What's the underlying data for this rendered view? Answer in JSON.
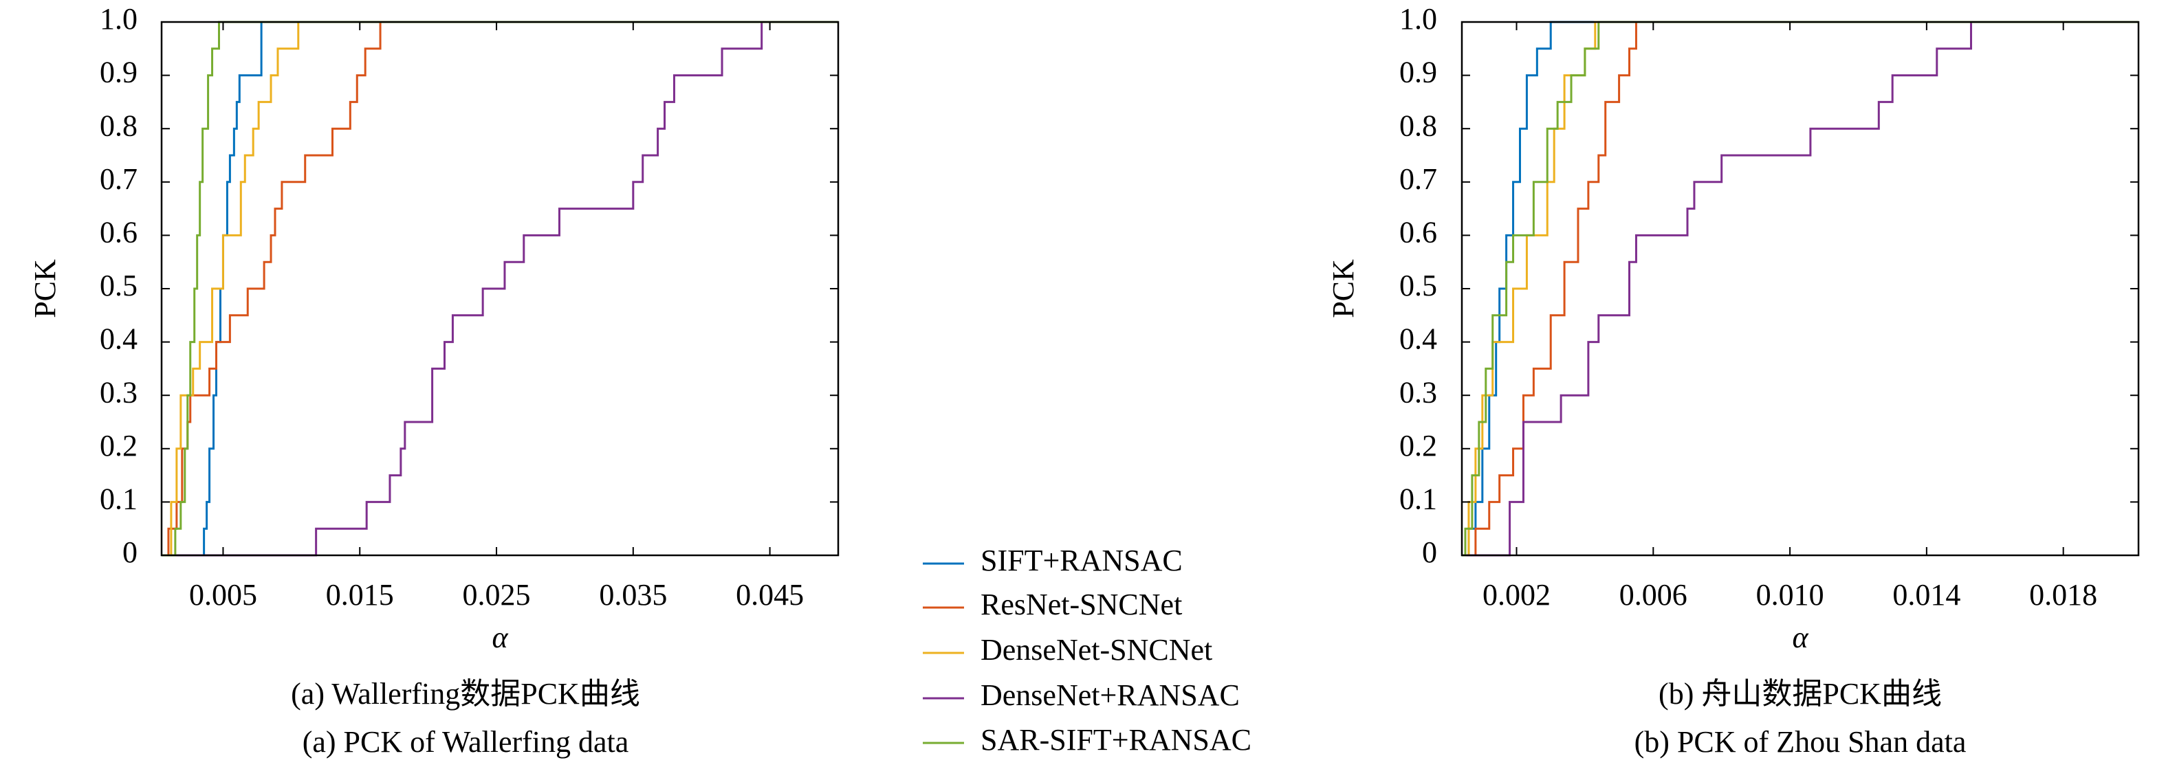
{
  "chart_data": [
    {
      "type": "step",
      "ylabel": "PCK",
      "xlabel": "α",
      "captions": [
        "(a) Wallerfing数据PCK曲线",
        "(a) PCK of Wallerfing data"
      ],
      "xlim": [
        0.0005,
        0.05
      ],
      "xticks": [
        0.005,
        0.015,
        0.025,
        0.035,
        0.045
      ],
      "ylim": [
        0,
        1
      ],
      "yticks": [
        0,
        0.1,
        0.2,
        0.3,
        0.4,
        0.5,
        0.6,
        0.7,
        0.8,
        0.9,
        {
          "value": 1,
          "label": "1.0"
        }
      ],
      "series": [
        {
          "name": "SIFT+RANSAC",
          "color": "#0072bd",
          "x": [
            0.0005,
            0.0036,
            0.0038,
            0.004,
            0.0043,
            0.0045,
            0.0048,
            0.005,
            0.0053,
            0.0055,
            0.0058,
            0.006,
            0.0062,
            0.0078
          ],
          "values": [
            0,
            0.05,
            0.1,
            0.2,
            0.3,
            0.4,
            0.5,
            0.6,
            0.7,
            0.75,
            0.8,
            0.85,
            0.9,
            1.0
          ]
        },
        {
          "name": "ResNet-SNCNet",
          "color": "#d95319",
          "x": [
            0.0005,
            0.001,
            0.0016,
            0.002,
            0.0024,
            0.0026,
            0.004,
            0.0045,
            0.0055,
            0.0068,
            0.008,
            0.0085,
            0.0088,
            0.0093,
            0.011,
            0.013,
            0.0143,
            0.0148,
            0.0154,
            0.0165
          ],
          "values": [
            0,
            0.05,
            0.1,
            0.2,
            0.25,
            0.3,
            0.35,
            0.4,
            0.45,
            0.5,
            0.55,
            0.6,
            0.65,
            0.7,
            0.75,
            0.8,
            0.85,
            0.9,
            0.95,
            1.0
          ]
        },
        {
          "name": "DenseNet-SNCNet",
          "color": "#edb120",
          "x": [
            0.0005,
            0.0012,
            0.0016,
            0.0019,
            0.0028,
            0.0033,
            0.0042,
            0.005,
            0.0063,
            0.0066,
            0.0072,
            0.0076,
            0.0085,
            0.009,
            0.0105
          ],
          "values": [
            0,
            0.1,
            0.2,
            0.3,
            0.35,
            0.4,
            0.5,
            0.6,
            0.7,
            0.75,
            0.8,
            0.85,
            0.9,
            0.95,
            1.0
          ]
        },
        {
          "name": "DenseNet+RANSAC",
          "color": "#7e2f8e",
          "x": [
            0.0005,
            0.0118,
            0.0155,
            0.0172,
            0.018,
            0.0183,
            0.0203,
            0.0212,
            0.0218,
            0.024,
            0.0256,
            0.027,
            0.0296,
            0.035,
            0.0357,
            0.0368,
            0.0373,
            0.038,
            0.0415,
            0.0444
          ],
          "values": [
            0,
            0.05,
            0.1,
            0.15,
            0.2,
            0.25,
            0.35,
            0.4,
            0.45,
            0.5,
            0.55,
            0.6,
            0.65,
            0.7,
            0.75,
            0.8,
            0.85,
            0.9,
            0.95,
            1.0
          ]
        },
        {
          "name": "SAR-SIFT+RANSAC",
          "color": "#77ac30",
          "x": [
            0.0005,
            0.0015,
            0.0019,
            0.0022,
            0.0024,
            0.0026,
            0.0029,
            0.0031,
            0.0033,
            0.0035,
            0.0039,
            0.0042,
            0.0047
          ],
          "values": [
            0,
            0.05,
            0.1,
            0.2,
            0.3,
            0.4,
            0.5,
            0.6,
            0.7,
            0.8,
            0.9,
            0.95,
            1.0
          ]
        }
      ]
    },
    {
      "type": "step",
      "ylabel": "PCK",
      "xlabel": "α",
      "captions": [
        "(b) 舟山数据PCK曲线",
        "(b) PCK of Zhou Shan data"
      ],
      "xlim": [
        0.0004,
        0.0202
      ],
      "xticks": [
        0.002,
        0.006,
        {
          "value": 0.01,
          "label": "0.010"
        },
        0.014,
        0.018
      ],
      "ylim": [
        0,
        1
      ],
      "yticks": [
        0,
        0.1,
        0.2,
        0.3,
        0.4,
        0.5,
        0.6,
        0.7,
        0.8,
        0.9,
        {
          "value": 1,
          "label": "1.0"
        }
      ],
      "series": [
        {
          "color": "#0072bd",
          "x": [
            0.0004,
            0.0006,
            0.0008,
            0.001,
            0.0012,
            0.0014,
            0.0015,
            0.0017,
            0.0019,
            0.0021,
            0.0023,
            0.0026,
            0.003
          ],
          "values": [
            0,
            0.05,
            0.1,
            0.2,
            0.3,
            0.4,
            0.5,
            0.6,
            0.7,
            0.8,
            0.9,
            0.95,
            1.0
          ]
        },
        {
          "color": "#d95319",
          "x": [
            0.0004,
            0.0008,
            0.0012,
            0.0015,
            0.0019,
            0.0022,
            0.0025,
            0.003,
            0.0034,
            0.0038,
            0.0041,
            0.0044,
            0.0046,
            0.005,
            0.0053,
            0.0055
          ],
          "values": [
            0,
            0.05,
            0.1,
            0.15,
            0.2,
            0.3,
            0.35,
            0.45,
            0.55,
            0.65,
            0.7,
            0.75,
            0.85,
            0.9,
            0.95,
            1.0
          ]
        },
        {
          "color": "#edb120",
          "x": [
            0.0004,
            0.0006,
            0.0008,
            0.001,
            0.0013,
            0.0019,
            0.0023,
            0.0029,
            0.0031,
            0.0034,
            0.004,
            0.0043
          ],
          "values": [
            0,
            0.1,
            0.2,
            0.3,
            0.4,
            0.5,
            0.6,
            0.7,
            0.8,
            0.9,
            0.95,
            1.0
          ]
        },
        {
          "color": "#7e2f8e",
          "x": [
            0.0004,
            0.0018,
            0.0022,
            0.0033,
            0.0041,
            0.0044,
            0.0053,
            0.0055,
            0.007,
            0.0072,
            0.008,
            0.0106,
            0.0126,
            0.013,
            0.0143,
            0.0153
          ],
          "values": [
            0,
            0.1,
            0.25,
            0.3,
            0.4,
            0.45,
            0.55,
            0.6,
            0.65,
            0.7,
            0.75,
            0.8,
            0.85,
            0.9,
            0.95,
            1.0
          ]
        },
        {
          "color": "#77ac30",
          "x": [
            0.0004,
            0.0005,
            0.0007,
            0.0009,
            0.0011,
            0.0013,
            0.0017,
            0.0019,
            0.0025,
            0.0029,
            0.0032,
            0.0036,
            0.004,
            0.0044
          ],
          "values": [
            0,
            0.05,
            0.15,
            0.25,
            0.35,
            0.45,
            0.55,
            0.6,
            0.7,
            0.8,
            0.85,
            0.9,
            0.95,
            1.0
          ]
        }
      ]
    }
  ]
}
